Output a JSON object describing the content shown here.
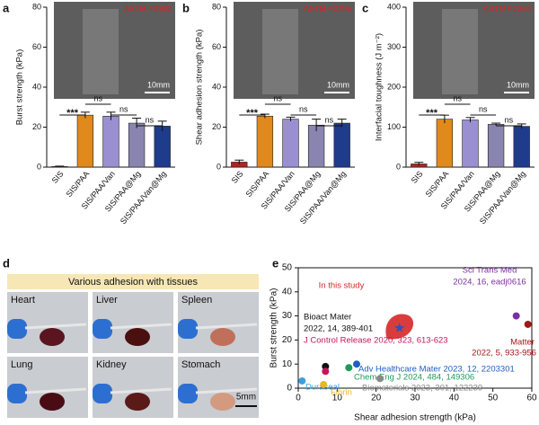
{
  "chart_data": [
    {
      "type": "bar",
      "panel": "a",
      "ylabel": "Burst strength (kPa)",
      "inset_label": "ASTM F2392",
      "scale_label": "10mm",
      "categories": [
        "SIS",
        "SIS/PAA",
        "SIS/PAA/Van",
        "SIS/PAA@Mg",
        "SIS/PAA/Van@Mg"
      ],
      "values": [
        0.3,
        26,
        25.5,
        22,
        20.5
      ],
      "errors": [
        0.2,
        1.5,
        2,
        2.5,
        2.5
      ],
      "colors": [
        "#b22222",
        "#e0891d",
        "#9a8fd0",
        "#8a84b0",
        "#1f3b8c"
      ],
      "ylim": [
        0,
        80
      ],
      "yticks": [
        0,
        20,
        40,
        60,
        80
      ],
      "significance": [
        {
          "between": [
            "SIS",
            "SIS/PAA"
          ],
          "label": "***"
        },
        {
          "between": [
            "SIS/PAA",
            "SIS/PAA/Van"
          ],
          "label": "ns"
        },
        {
          "between": [
            "SIS/PAA/Van",
            "SIS/PAA@Mg"
          ],
          "label": "ns"
        },
        {
          "between": [
            "SIS/PAA@Mg",
            "SIS/PAA/Van@Mg"
          ],
          "label": "ns"
        }
      ]
    },
    {
      "type": "bar",
      "panel": "b",
      "ylabel": "Shear adhesion strength (kPa)",
      "inset_label": "ASTM F2255",
      "scale_label": "10mm",
      "categories": [
        "SIS",
        "SIS/PAA",
        "SIS/PAA/Van",
        "SIS/PAA@Mg",
        "SIS/PAA/Van@Mg"
      ],
      "values": [
        2.5,
        25.5,
        24,
        21,
        22
      ],
      "errors": [
        1,
        1,
        1,
        3,
        2
      ],
      "colors": [
        "#b22222",
        "#e0891d",
        "#9a8fd0",
        "#8a84b0",
        "#1f3b8c"
      ],
      "ylim": [
        0,
        80
      ],
      "yticks": [
        0,
        20,
        40,
        60,
        80
      ],
      "significance": [
        {
          "between": [
            "SIS",
            "SIS/PAA"
          ],
          "label": "***"
        },
        {
          "between": [
            "SIS/PAA",
            "SIS/PAA/Van"
          ],
          "label": "ns"
        },
        {
          "between": [
            "SIS/PAA/Van",
            "SIS/PAA@Mg"
          ],
          "label": "ns"
        },
        {
          "between": [
            "SIS/PAA@Mg",
            "SIS/PAA/Van@Mg"
          ],
          "label": "ns"
        }
      ]
    },
    {
      "type": "bar",
      "panel": "c",
      "ylabel": "Interfacial toughness (J m⁻²)",
      "inset_label": "ASTM F2256",
      "scale_label": "10mm",
      "categories": [
        "SIS",
        "SIS/PAA",
        "SIS/PAA/Van",
        "SIS/PAA@Mg",
        "SIS/PAA/Van@Mg"
      ],
      "values": [
        8,
        120,
        118,
        107,
        102
      ],
      "errors": [
        4,
        10,
        6,
        3,
        6
      ],
      "colors": [
        "#b22222",
        "#e0891d",
        "#9a8fd0",
        "#8a84b0",
        "#1f3b8c"
      ],
      "ylim": [
        0,
        400
      ],
      "yticks": [
        0,
        100,
        200,
        300,
        400
      ],
      "significance": [
        {
          "between": [
            "SIS",
            "SIS/PAA"
          ],
          "label": "***"
        },
        {
          "between": [
            "SIS/PAA",
            "SIS/PAA/Van"
          ],
          "label": "ns"
        },
        {
          "between": [
            "SIS/PAA/Van",
            "SIS/PAA@Mg"
          ],
          "label": "ns"
        },
        {
          "between": [
            "SIS/PAA@Mg",
            "SIS/PAA/Van@Mg"
          ],
          "label": "ns"
        }
      ]
    },
    {
      "type": "scatter",
      "panel": "e",
      "xlabel": "Shear adhesion strength (kPa)",
      "ylabel": "Burst strength (kPa)",
      "xlim": [
        0,
        60
      ],
      "xticks": [
        0,
        10,
        20,
        30,
        40,
        50,
        60
      ],
      "ylim": [
        0,
        50
      ],
      "yticks": [
        0,
        10,
        20,
        30,
        40,
        50
      ],
      "series": [
        {
          "name": "In this study",
          "color": "#d62728",
          "x": [
            26
          ],
          "values": [
            25
          ],
          "marker": "star"
        },
        {
          "name": "Sci Trans Med",
          "ref": "2024, 16, eadj0616",
          "color": "#7b2fa0",
          "x": [
            56
          ],
          "values": [
            30
          ]
        },
        {
          "name": "Matter",
          "ref": "2022, 5, 933-956",
          "color": "#a01818",
          "x": [
            59
          ],
          "values": [
            26.5
          ]
        },
        {
          "name": "Bioact Mater",
          "ref": "2022, 14, 389-401",
          "color": "#111111",
          "x": [
            7
          ],
          "values": [
            9
          ]
        },
        {
          "name": "J Control Release 2020, 323, 613-623",
          "color": "#c2185b",
          "x": [
            7
          ],
          "values": [
            7
          ]
        },
        {
          "name": "Adv Healthcare Mater 2023, 12, 2203301",
          "color": "#1f5fbf",
          "x": [
            15
          ],
          "values": [
            10
          ]
        },
        {
          "name": "Chem Eng J 2024, 484, 149306",
          "color": "#1e9a5a",
          "x": [
            13
          ],
          "values": [
            8.5
          ]
        },
        {
          "name": "Biomaterials 2023, 301, 122239",
          "color": "#888888",
          "x": [
            21
          ],
          "values": [
            4
          ]
        },
        {
          "name": "Duraseal",
          "color": "#3aa0e0",
          "x": [
            1
          ],
          "values": [
            3
          ]
        },
        {
          "name": "Fibrin",
          "color": "#e8b820",
          "x": [
            6.5
          ],
          "values": [
            1.5
          ]
        }
      ]
    }
  ],
  "photo_panel": {
    "panel": "d",
    "title": "Various adhesion with tissues",
    "tissues": [
      "Heart",
      "Liver",
      "Spleen",
      "Lung",
      "Kidney",
      "Stomach"
    ],
    "scale_label": "5mm"
  }
}
